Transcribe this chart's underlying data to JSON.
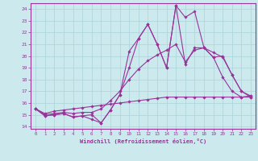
{
  "x": [
    0,
    1,
    2,
    3,
    4,
    5,
    6,
    7,
    8,
    9,
    10,
    11,
    12,
    13,
    14,
    15,
    16,
    17,
    18,
    19,
    20,
    21,
    22,
    23
  ],
  "line1": [
    15.5,
    14.9,
    15.0,
    15.1,
    14.8,
    14.9,
    14.6,
    14.3,
    15.4,
    16.7,
    19.0,
    21.5,
    22.7,
    21.0,
    19.0,
    24.3,
    23.3,
    23.8,
    20.7,
    19.9,
    18.2,
    17.0,
    16.5,
    16.5
  ],
  "line2": [
    15.5,
    14.9,
    15.0,
    15.1,
    14.8,
    14.9,
    15.0,
    14.3,
    15.4,
    16.7,
    20.4,
    21.5,
    22.7,
    21.0,
    19.0,
    24.3,
    19.3,
    20.7,
    20.7,
    19.9,
    20.0,
    18.4,
    17.0,
    16.5
  ],
  "line3": [
    15.5,
    15.0,
    15.1,
    15.2,
    15.1,
    15.2,
    15.2,
    15.5,
    16.2,
    17.0,
    18.0,
    18.9,
    19.6,
    20.1,
    20.5,
    21.0,
    19.5,
    20.5,
    20.7,
    20.3,
    19.9,
    18.4,
    17.0,
    16.6
  ],
  "line4": [
    15.5,
    15.1,
    15.3,
    15.4,
    15.5,
    15.6,
    15.7,
    15.8,
    15.9,
    16.0,
    16.1,
    16.2,
    16.3,
    16.4,
    16.5,
    16.5,
    16.5,
    16.5,
    16.5,
    16.5,
    16.5,
    16.5,
    16.5,
    16.6
  ],
  "bg_color": "#cce9ee",
  "grid_color": "#aad4db",
  "line_color": "#993399",
  "xlabel": "Windchill (Refroidissement éolien,°C)",
  "yticks": [
    14,
    15,
    16,
    17,
    18,
    19,
    20,
    21,
    22,
    23,
    24
  ],
  "xticks": [
    0,
    1,
    2,
    3,
    4,
    5,
    6,
    7,
    8,
    9,
    10,
    11,
    12,
    13,
    14,
    15,
    16,
    17,
    18,
    19,
    20,
    21,
    22,
    23
  ],
  "xlim": [
    -0.5,
    23.5
  ],
  "ylim": [
    13.8,
    24.5
  ]
}
